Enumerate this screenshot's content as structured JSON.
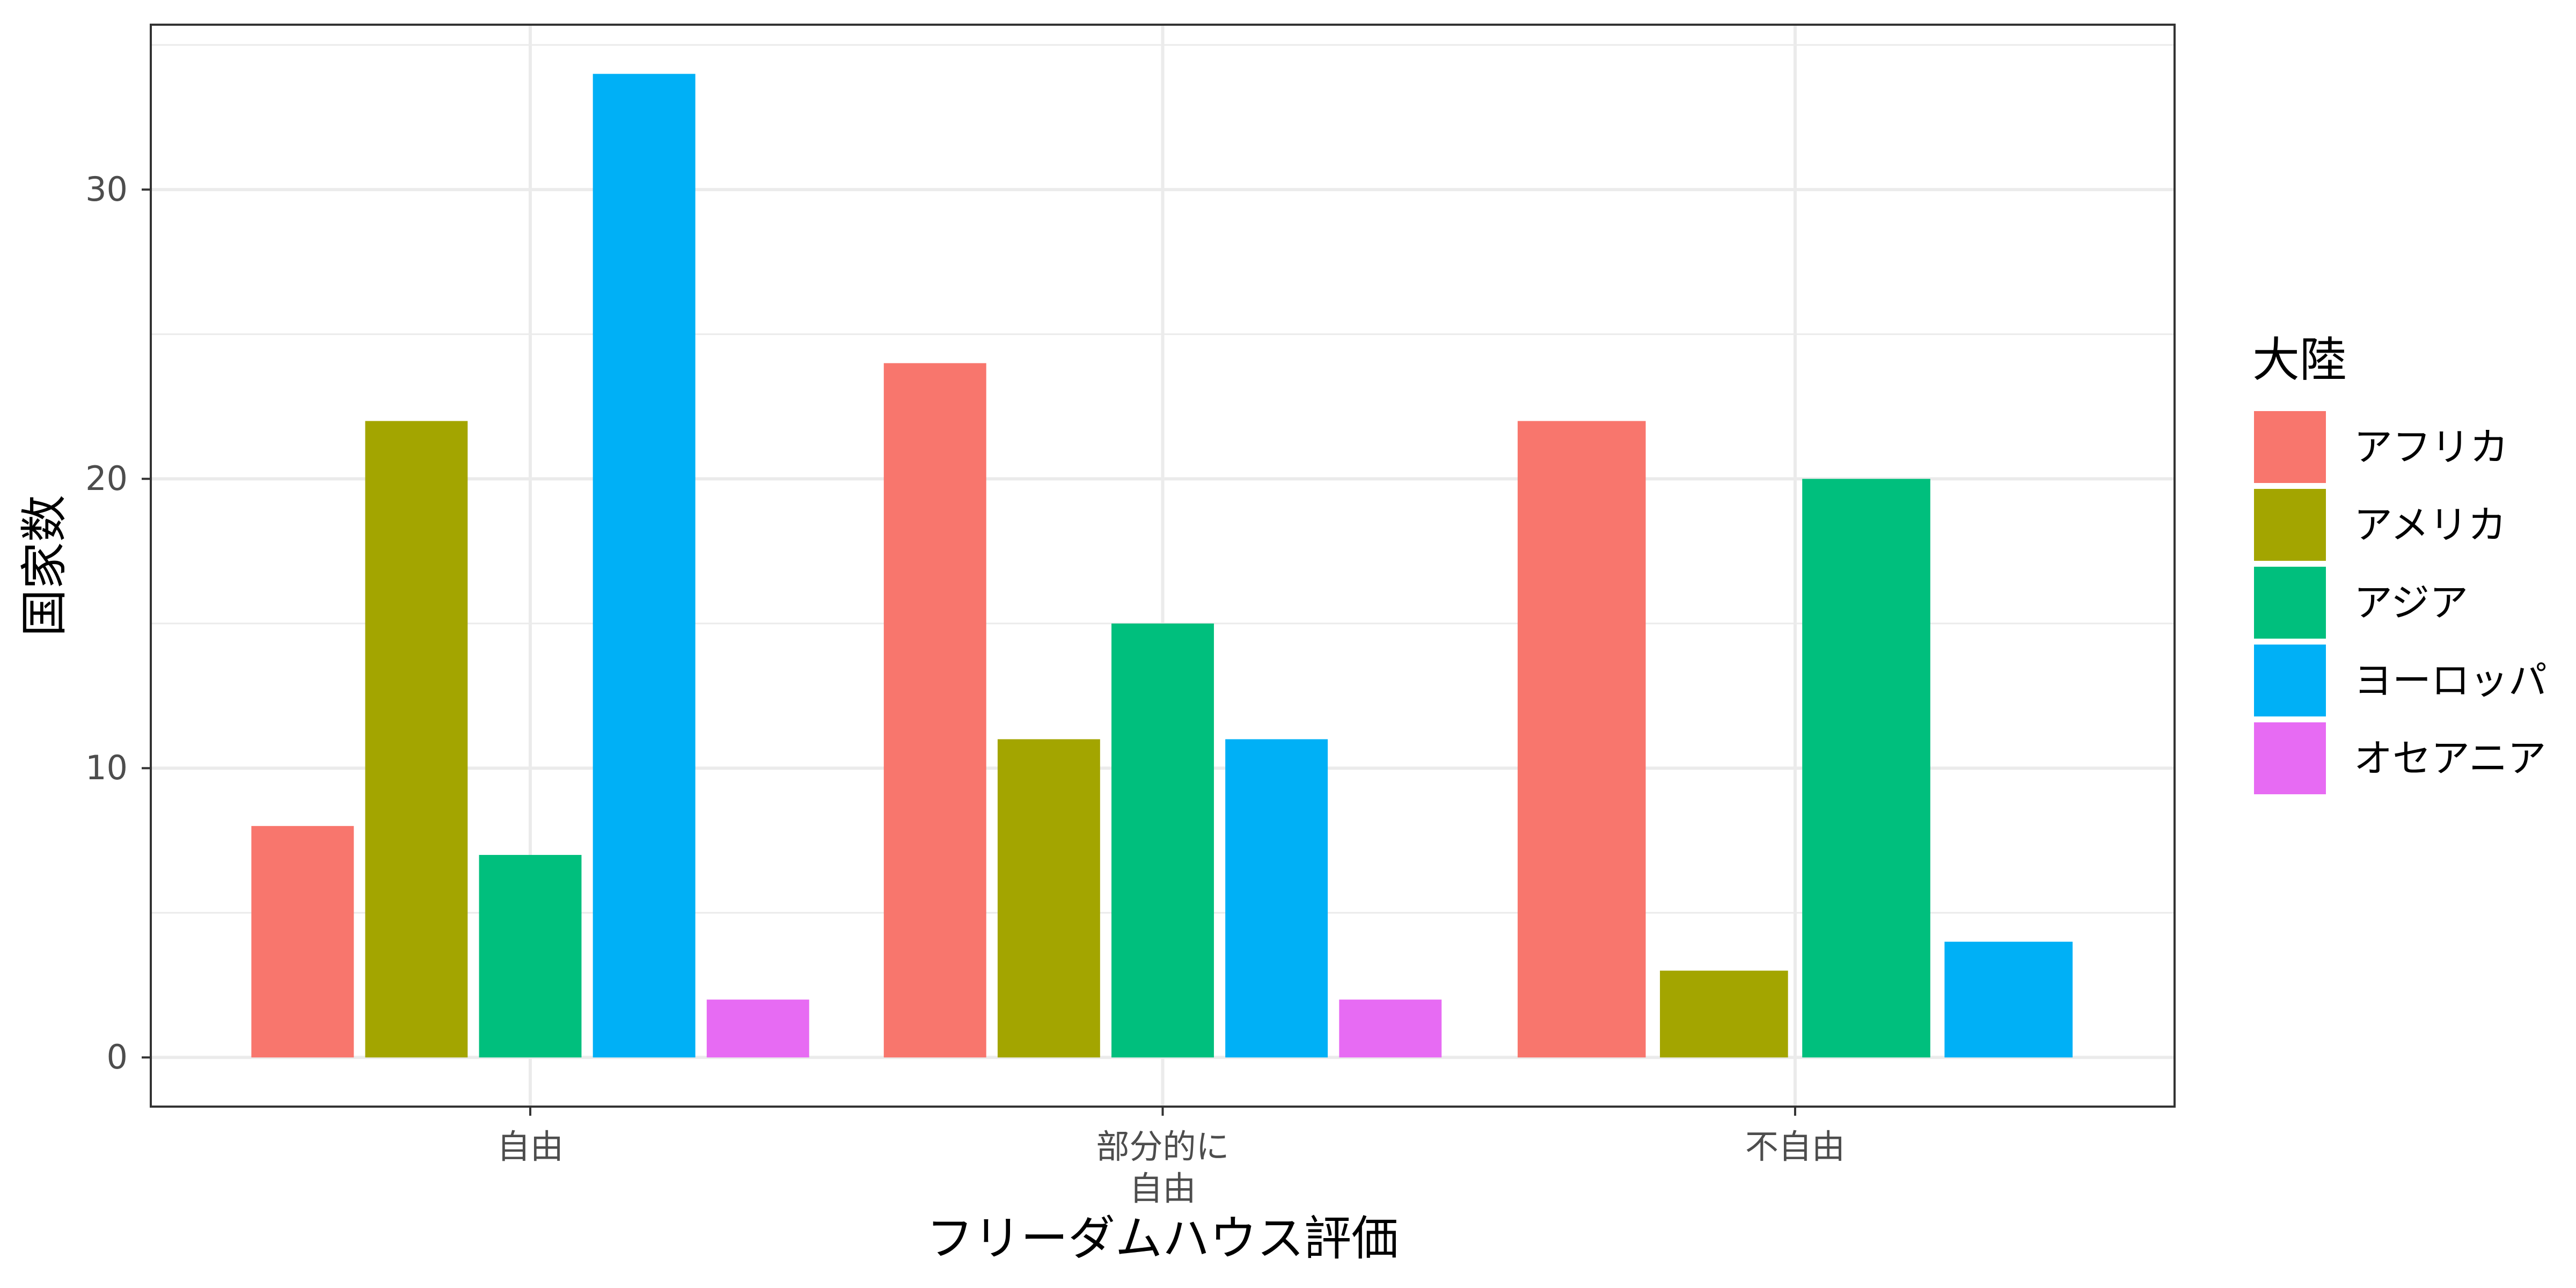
{
  "chart_data": {
    "type": "bar",
    "bar_layout": "grouped",
    "xlabel": "フリーダムハウス評価",
    "ylabel": "国家数",
    "categories": [
      "自由",
      "部分的に\n自由",
      "不自由"
    ],
    "series": [
      {
        "name": "アフリカ",
        "color": "#F8766D",
        "values": [
          8,
          24,
          22
        ]
      },
      {
        "name": "アメリカ",
        "color": "#A3A500",
        "values": [
          22,
          11,
          3
        ]
      },
      {
        "name": "アジア",
        "color": "#00BF7D",
        "values": [
          7,
          15,
          20
        ]
      },
      {
        "name": "ヨーロッパ",
        "color": "#00B0F6",
        "values": [
          34,
          11,
          4
        ]
      },
      {
        "name": "オセアニア",
        "color": "#E76BF3",
        "values": [
          2,
          2,
          null
        ]
      }
    ],
    "ylim": [
      -1.7,
      35.7
    ],
    "yticks": [
      0,
      10,
      20,
      30
    ],
    "grid": true,
    "legend": {
      "title": "大陸",
      "position": "right"
    }
  },
  "theme": {
    "background": "#FFFFFF",
    "panel_border": "#333333",
    "grid": "#EBEBEB",
    "tick_label": "#4D4D4D",
    "title_text": "#000000"
  }
}
